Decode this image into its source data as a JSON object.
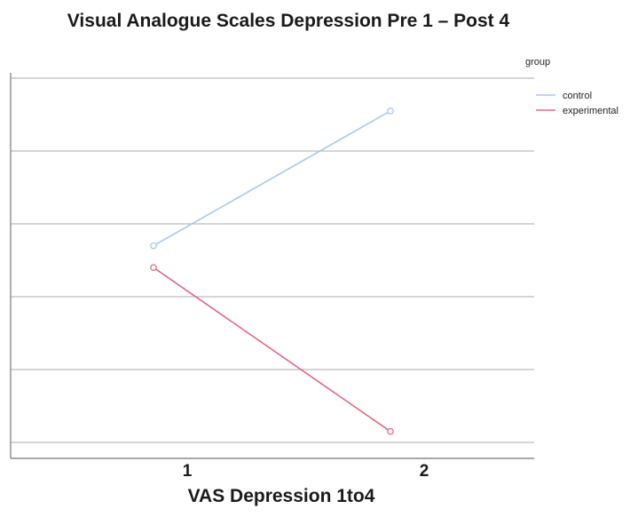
{
  "chart_data": {
    "type": "line",
    "title": "Visual Analogue Scales Depression Pre 1 – Post 4",
    "xlabel": "VAS Depression 1to4",
    "ylabel": "",
    "categories": [
      "1",
      "2"
    ],
    "ylim": [
      0,
      5
    ],
    "y_ticks": [
      0,
      1,
      2,
      3,
      4,
      5
    ],
    "y_tick_labels_shown": false,
    "grid": "horizontal",
    "legend": {
      "title": "group",
      "placement": "top-right"
    },
    "series": [
      {
        "name": "control",
        "color": "#a9c8ec",
        "values": [
          2.7,
          4.55
        ]
      },
      {
        "name": "experimental",
        "color": "#e06a82",
        "values": [
          2.4,
          0.15
        ]
      }
    ]
  }
}
